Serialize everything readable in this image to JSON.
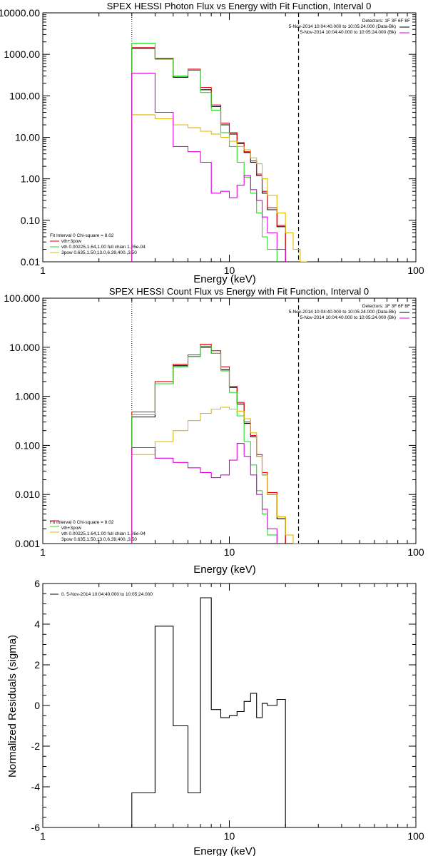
{
  "colors": {
    "black": "#000000",
    "red": "#e8000b",
    "green": "#22dd22",
    "magenta": "#dd00dd",
    "yellow": "#e0b800"
  },
  "chart_data": [
    {
      "type": "line",
      "title": "SPEX HESSI Photon Flux vs Energy with Fit Function, Interval 0",
      "xlabel": "Energy (keV)",
      "ylabel": "",
      "xscale": "log",
      "yscale": "log",
      "xlim": [
        1,
        100
      ],
      "ylim": [
        0.01,
        10000
      ],
      "xtick_labels": [
        "1",
        "10",
        "100"
      ],
      "ytick_labels": [
        "0.01",
        "0.10",
        "1.00",
        "10.00",
        "100.00",
        "1000.00",
        "10000.00"
      ],
      "vlines": {
        "dotted": 3,
        "dashed": 23.5
      },
      "legend_top": [
        "Detectors: 1F 3F 6F 8F",
        "5-Nov-2014 10:04:40.000 to 10:05:24.000 (Data-Bk)",
        "5-Nov-2014 10:04:40.000 to 10:05:24.000 (Bk)"
      ],
      "legend_bottom": [
        "Fit Interval 0   Chi-square = 8.02",
        "vth+3pow",
        "vth 0.00225,1.64,1.00  full chian 1.26e-04",
        "3pow 0.635,1.50,13.0,6.39,400.,3.50"
      ],
      "edges": [
        3,
        4,
        5,
        6,
        7,
        8,
        9,
        10,
        11,
        12,
        13,
        14,
        15,
        16,
        18,
        20,
        22,
        24,
        26,
        28
      ],
      "series": [
        {
          "name": "Data-Bk",
          "color": "black",
          "values": [
            1400,
            780,
            280,
            420,
            140,
            55,
            20,
            12,
            7,
            4.3,
            2.5,
            1.2,
            0.45,
            0.18,
            0.07,
            null,
            null,
            null,
            null
          ]
        },
        {
          "name": "vth+3pow",
          "color": "red",
          "values": [
            1450,
            800,
            300,
            440,
            160,
            60,
            22,
            13,
            7.5,
            4.5,
            2.7,
            1.3,
            0.5,
            0.2,
            0.075,
            null,
            null,
            null,
            null
          ]
        },
        {
          "name": "vth",
          "color": "green",
          "values": [
            1850,
            760,
            300,
            430,
            120,
            45,
            13,
            6,
            2.5,
            1.1,
            0.45,
            0.15,
            0.04,
            0.02,
            null,
            null,
            null,
            null,
            null
          ]
        },
        {
          "name": "3pow",
          "color": "yellow",
          "values": [
            35,
            28,
            20,
            17,
            14,
            12,
            10,
            8,
            6,
            5,
            3.2,
            2.3,
            1.0,
            0.4,
            0.15,
            0.05,
            0.02,
            0.01,
            null
          ]
        },
        {
          "name": "Bk",
          "color": "magenta",
          "values": [
            350,
            40,
            6,
            4.5,
            2.5,
            0.45,
            0.5,
            0.35,
            0.7,
            1.2,
            0.55,
            0.3,
            0.12,
            0.05,
            0.02,
            null,
            null,
            null,
            null
          ]
        }
      ]
    },
    {
      "type": "line",
      "title": "SPEX HESSI Count Flux vs Energy with Fit Function, Interval 0",
      "xlabel": "Energy (keV)",
      "ylabel": "",
      "xscale": "log",
      "yscale": "log",
      "xlim": [
        1,
        100
      ],
      "ylim": [
        0.001,
        100
      ],
      "xtick_labels": [
        "1",
        "10",
        "100"
      ],
      "ytick_labels": [
        "0.001",
        "0.010",
        "0.100",
        "1.000",
        "10.000",
        "100.000"
      ],
      "vlines": {
        "dotted": 3,
        "dashed": 23.5
      },
      "legend_top": [
        "Detectors: 1F 3F 6F 8F",
        "5-Nov-2014 10:04:40.000 to 10:05:24.000 (Data-Bk)",
        "5-Nov-2014 10:04:40.000 to 10:05:24.000 (Bk)"
      ],
      "legend_bottom": [
        "Fit Interval 0   Chi-square = 8.02",
        "vth+3pow",
        "vth 0.00225,1.64,1.00  full chian 1.26e-04",
        "3pow 0.635,1.50,13.0,6.39,400.,3.50"
      ],
      "edges": [
        3,
        4,
        5,
        6,
        7,
        8,
        9,
        10,
        11,
        12,
        13,
        14,
        15,
        16,
        18,
        20,
        22,
        24,
        26,
        28
      ],
      "series": [
        {
          "name": "Data-Bk",
          "color": "black",
          "values": [
            0.38,
            1.8,
            4.2,
            6.5,
            10,
            7.5,
            3.5,
            1.5,
            0.7,
            0.28,
            0.15,
            0.06,
            0.025,
            0.01,
            0.0032,
            null,
            null,
            null,
            null
          ]
        },
        {
          "name": "vth+3pow",
          "color": "red",
          "values": [
            0.48,
            2.0,
            4.5,
            7.0,
            11.5,
            8.5,
            4.0,
            1.6,
            0.75,
            0.3,
            0.16,
            0.065,
            0.028,
            0.011,
            0.0035,
            null,
            null,
            null,
            null
          ]
        },
        {
          "name": "vth",
          "color": "green",
          "values": [
            0.42,
            1.8,
            4.0,
            6.5,
            10.5,
            7.5,
            3.3,
            1.2,
            0.4,
            0.12,
            0.04,
            0.012,
            0.004,
            0.0015,
            null,
            null,
            null,
            null,
            null
          ]
        },
        {
          "name": "3pow",
          "color": "yellow",
          "values": [
            0.065,
            0.12,
            0.2,
            0.32,
            0.45,
            0.55,
            0.6,
            0.55,
            0.5,
            0.35,
            0.18,
            0.06,
            0.025,
            0.01,
            0.0035,
            0.0015,
            0.001,
            null,
            null
          ]
        },
        {
          "name": "Bk",
          "color": "magenta",
          "values": [
            0.09,
            0.055,
            0.045,
            0.035,
            0.028,
            0.022,
            0.025,
            0.05,
            0.11,
            0.06,
            0.025,
            0.01,
            0.005,
            0.002,
            null,
            null,
            null,
            null,
            null
          ]
        }
      ]
    },
    {
      "type": "line",
      "title": "",
      "xlabel": "Energy (keV)",
      "ylabel": "Normalized Residuals (sigma)",
      "xscale": "log",
      "yscale": "linear",
      "xlim": [
        1,
        100
      ],
      "ylim": [
        -6,
        6
      ],
      "xtick_labels": [
        "1",
        "10",
        "100"
      ],
      "ytick_labels": [
        "-6",
        "-4",
        "-2",
        "0",
        "2",
        "4",
        "6"
      ],
      "legend": [
        "0.  5-Nov-2014 10:04:40.000 to 10:05:24.000"
      ],
      "edges": [
        3,
        4,
        5,
        6,
        7,
        8,
        9,
        10,
        11,
        12,
        13,
        14,
        15,
        16,
        18,
        20,
        22,
        24
      ],
      "series": [
        {
          "name": "",
          "color": "black",
          "values": [
            -4.3,
            3.9,
            -1.0,
            -4.3,
            5.3,
            -0.2,
            -0.6,
            -0.5,
            -0.3,
            0.2,
            0.6,
            -0.6,
            0.1,
            0.0,
            0.3
          ]
        }
      ]
    }
  ]
}
